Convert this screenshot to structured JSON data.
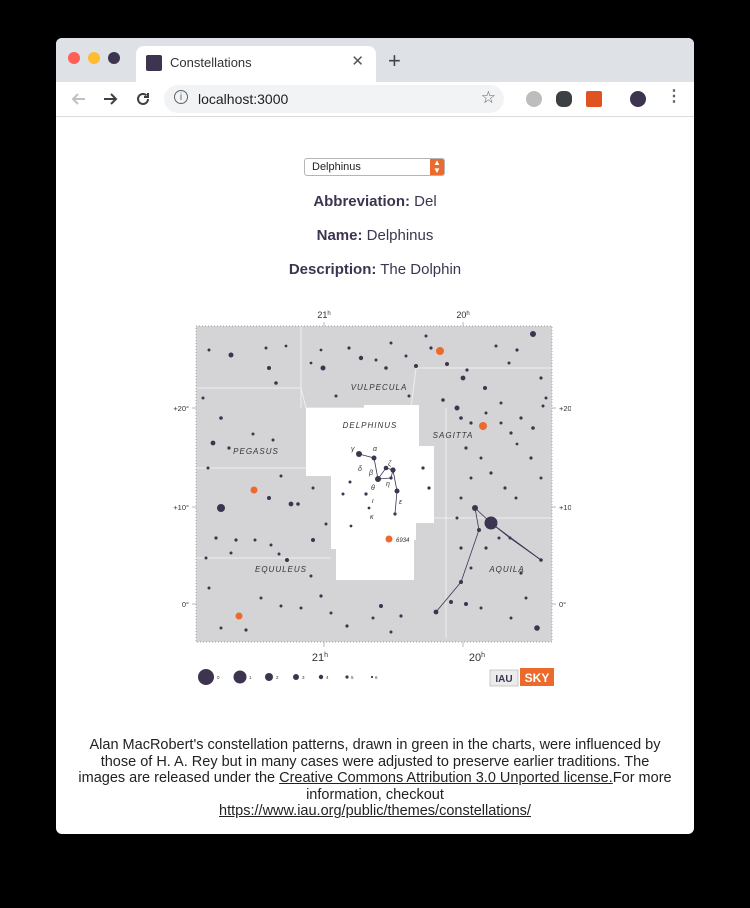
{
  "browser": {
    "tab_title": "Constellations",
    "close_glyph": "✕",
    "new_tab_glyph": "+",
    "url": "localhost:3000"
  },
  "selector": {
    "selected": "Delphinus"
  },
  "details": {
    "abbreviation_label": "Abbreviation:",
    "abbreviation": "Del",
    "name_label": "Name:",
    "name": "Delphinus",
    "description_label": "Description:",
    "description": "The Dolphin"
  },
  "chart": {
    "ra_top": [
      "21",
      "20"
    ],
    "ra_bottom": [
      "21",
      "20"
    ],
    "ra_unit": "h",
    "dec_labels": [
      "+20°",
      "+10°",
      "0°"
    ],
    "constellations": [
      "VULPECULA",
      "DELPHINUS",
      "SAGITTA",
      "PEGASUS",
      "EQUULEUS",
      "AQUILA"
    ],
    "greek": [
      "γ",
      "α",
      "δ",
      "β",
      "ζ",
      "θ",
      "η",
      "ι",
      "ε",
      "κ"
    ],
    "object_label": "6934",
    "magnitude_labels": [
      "0",
      "1",
      "2",
      "3",
      "4",
      "5",
      "6"
    ],
    "iau_logo": "IAU",
    "sky_logo": "SKY",
    "colors": {
      "background": "#d4d4d7",
      "highlight": "#ffffff",
      "star": "#3d3550",
      "orange": "#ec6a2c"
    }
  },
  "footer": {
    "text_before": "Alan MacRobert's constellation patterns, drawn in green in the charts, were influenced by those of H. A. Rey but in many cases were adjusted to preserve earlier traditions. The images are released under the ",
    "license_link": "Creative Commons Attribution 3.0 Unported license.",
    "text_middle": "For more information, checkout ",
    "iau_link": "https://www.iau.org/public/themes/constellations/"
  }
}
